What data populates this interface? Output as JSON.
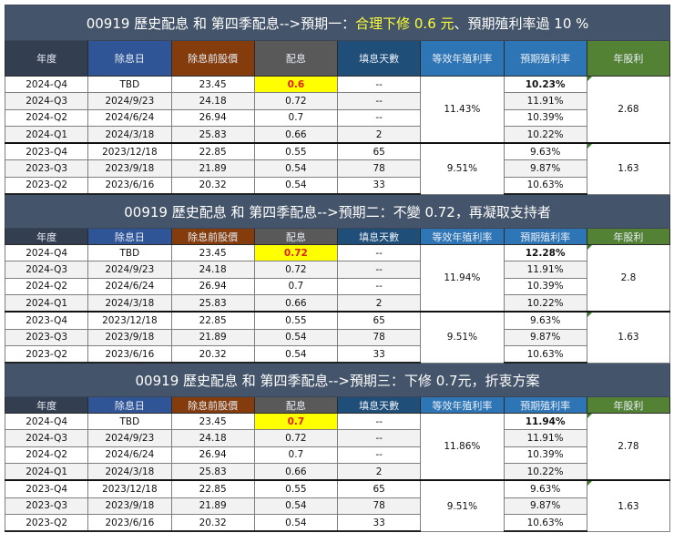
{
  "columns": [
    "年度",
    "除息日",
    "除息前股價",
    "配息",
    "填息天數",
    "等效年殖利率",
    "預期殖利率",
    "年股利"
  ],
  "header_colors": {
    "year": "#333f50",
    "date": "#2f5597",
    "price": "#843c0c",
    "dividend": "#595959",
    "days": "#1f4e79",
    "equiv_yield": "#2e75b6",
    "expected_yield": "#2e75b6",
    "annual": "#548235"
  },
  "highlight": {
    "cell_bg": "#ffff00",
    "cell_text": "#e0201a",
    "title_accent": "#ffff33"
  },
  "sections": [
    {
      "title_prefix": "00919 歷史配息 和 第四季配息-->預期一：",
      "title_highlight": "合理下修 0.6 元",
      "title_suffix": "、預期殖利率過 10 %",
      "rows": [
        {
          "year": "2024-Q4",
          "date": "TBD",
          "price": "23.45",
          "dividend": "0.6",
          "days": "--",
          "expected": "10.23%"
        },
        {
          "year": "2024-Q3",
          "date": "2024/9/23",
          "price": "24.18",
          "dividend": "0.72",
          "days": "--",
          "expected": "11.91%"
        },
        {
          "year": "2024-Q2",
          "date": "2024/6/24",
          "price": "26.94",
          "dividend": "0.7",
          "days": "--",
          "expected": "10.39%"
        },
        {
          "year": "2024-Q1",
          "date": "2024/3/18",
          "price": "25.83",
          "dividend": "0.66",
          "days": "2",
          "expected": "10.22%"
        },
        {
          "year": "2023-Q4",
          "date": "2023/12/18",
          "price": "22.85",
          "dividend": "0.55",
          "days": "65",
          "expected": "9.63%"
        },
        {
          "year": "2023-Q3",
          "date": "2023/9/18",
          "price": "21.89",
          "dividend": "0.54",
          "days": "78",
          "expected": "9.87%"
        },
        {
          "year": "2023-Q2",
          "date": "2023/6/16",
          "price": "20.32",
          "dividend": "0.54",
          "days": "33",
          "expected": "10.63%"
        }
      ],
      "equiv_2024": "11.43%",
      "annual_2024": "2.68",
      "equiv_2023": "9.51%",
      "annual_2023": "1.63"
    },
    {
      "title_prefix": "00919 歷史配息 和 第四季配息-->預期二：",
      "title_highlight": "",
      "title_suffix": "不變 0.72，再凝取支持者",
      "rows": [
        {
          "year": "2024-Q4",
          "date": "TBD",
          "price": "23.45",
          "dividend": "0.72",
          "days": "--",
          "expected": "12.28%"
        },
        {
          "year": "2024-Q3",
          "date": "2024/9/23",
          "price": "24.18",
          "dividend": "0.72",
          "days": "--",
          "expected": "11.91%"
        },
        {
          "year": "2024-Q2",
          "date": "2024/6/24",
          "price": "26.94",
          "dividend": "0.7",
          "days": "--",
          "expected": "10.39%"
        },
        {
          "year": "2024-Q1",
          "date": "2024/3/18",
          "price": "25.83",
          "dividend": "0.66",
          "days": "2",
          "expected": "10.22%"
        },
        {
          "year": "2023-Q4",
          "date": "2023/12/18",
          "price": "22.85",
          "dividend": "0.55",
          "days": "65",
          "expected": "9.63%"
        },
        {
          "year": "2023-Q3",
          "date": "2023/9/18",
          "price": "21.89",
          "dividend": "0.54",
          "days": "78",
          "expected": "9.87%"
        },
        {
          "year": "2023-Q2",
          "date": "2023/6/16",
          "price": "20.32",
          "dividend": "0.54",
          "days": "33",
          "expected": "10.63%"
        }
      ],
      "equiv_2024": "11.94%",
      "annual_2024": "2.8",
      "equiv_2023": "9.51%",
      "annual_2023": "1.63"
    },
    {
      "title_prefix": "00919 歷史配息 和 第四季配息-->預期三：",
      "title_highlight": "",
      "title_suffix": "下修 0.7元，折衷方案",
      "rows": [
        {
          "year": "2024-Q4",
          "date": "TBD",
          "price": "23.45",
          "dividend": "0.7",
          "days": "--",
          "expected": "11.94%"
        },
        {
          "year": "2024-Q3",
          "date": "2024/9/23",
          "price": "24.18",
          "dividend": "0.72",
          "days": "--",
          "expected": "11.91%"
        },
        {
          "year": "2024-Q2",
          "date": "2024/6/24",
          "price": "26.94",
          "dividend": "0.7",
          "days": "--",
          "expected": "10.39%"
        },
        {
          "year": "2024-Q1",
          "date": "2024/3/18",
          "price": "25.83",
          "dividend": "0.66",
          "days": "2",
          "expected": "10.22%"
        },
        {
          "year": "2023-Q4",
          "date": "2023/12/18",
          "price": "22.85",
          "dividend": "0.55",
          "days": "65",
          "expected": "9.63%"
        },
        {
          "year": "2023-Q3",
          "date": "2023/9/18",
          "price": "21.89",
          "dividend": "0.54",
          "days": "78",
          "expected": "9.87%"
        },
        {
          "year": "2023-Q2",
          "date": "2023/6/16",
          "price": "20.32",
          "dividend": "0.54",
          "days": "33",
          "expected": "10.63%"
        }
      ],
      "equiv_2024": "11.86%",
      "annual_2024": "2.78",
      "equiv_2023": "9.51%",
      "annual_2023": "1.63"
    }
  ]
}
